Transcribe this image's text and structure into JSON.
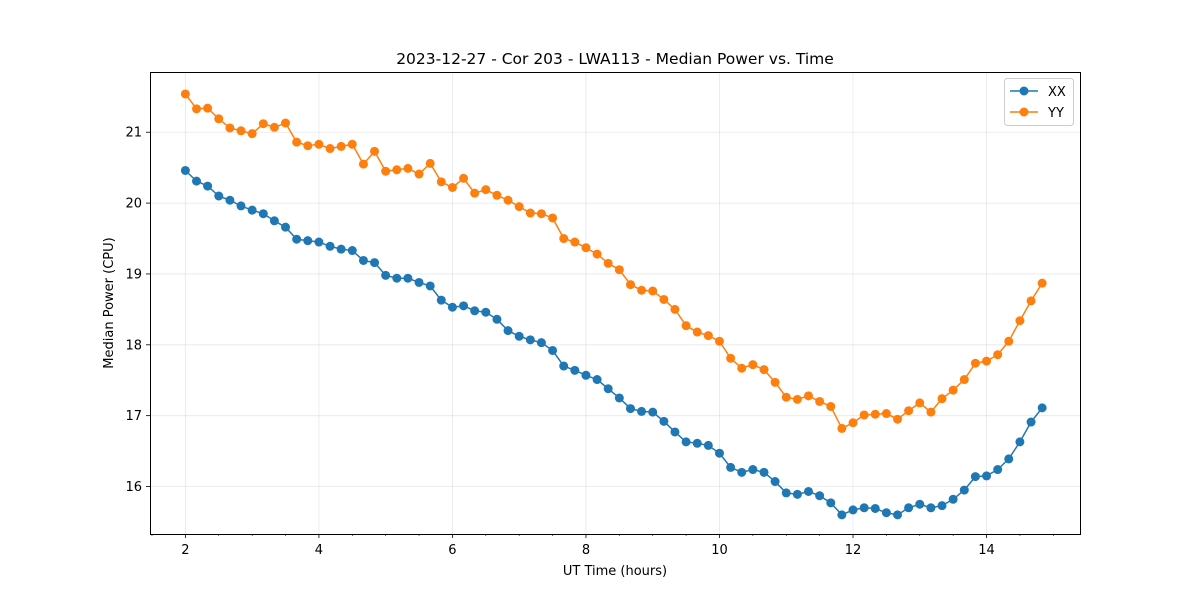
{
  "chart_data": {
    "type": "line",
    "title": "2023-12-27 - Cor 203 - LWA113 - Median Power vs. Time",
    "xlabel": "UT Time (hours)",
    "ylabel": "Median Power (CPU)",
    "xlim": [
      1.47,
      15.4
    ],
    "ylim": [
      15.33,
      21.85
    ],
    "xticks": [
      "2",
      "4",
      "6",
      "8",
      "10",
      "12",
      "14"
    ],
    "yticks": [
      "16",
      "17",
      "18",
      "19",
      "20",
      "21"
    ],
    "grid": true,
    "legend_position": "top-right",
    "x": [
      2.0,
      2.167,
      2.333,
      2.5,
      2.667,
      2.833,
      3.0,
      3.167,
      3.333,
      3.5,
      3.667,
      3.833,
      4.0,
      4.167,
      4.333,
      4.5,
      4.667,
      4.833,
      5.0,
      5.167,
      5.333,
      5.5,
      5.667,
      5.833,
      6.0,
      6.167,
      6.333,
      6.5,
      6.667,
      6.833,
      7.0,
      7.167,
      7.333,
      7.5,
      7.667,
      7.833,
      8.0,
      8.167,
      8.333,
      8.5,
      8.667,
      8.833,
      9.0,
      9.167,
      9.333,
      9.5,
      9.667,
      9.833,
      10.0,
      10.167,
      10.333,
      10.5,
      10.667,
      10.833,
      11.0,
      11.167,
      11.333,
      11.5,
      11.667,
      11.833,
      12.0,
      12.167,
      12.333,
      12.5,
      12.667,
      12.833,
      13.0,
      13.167,
      13.333,
      13.5,
      13.667,
      13.833,
      14.0,
      14.167,
      14.333,
      14.5,
      14.667,
      14.833
    ],
    "series": [
      {
        "name": "XX",
        "color": "#1f77b4",
        "values": [
          20.46,
          20.31,
          20.24,
          20.1,
          20.04,
          19.96,
          19.9,
          19.85,
          19.75,
          19.66,
          19.49,
          19.47,
          19.45,
          19.39,
          19.35,
          19.33,
          19.19,
          19.16,
          18.98,
          18.94,
          18.94,
          18.88,
          18.83,
          18.63,
          18.53,
          18.55,
          18.48,
          18.46,
          18.36,
          18.2,
          18.12,
          18.07,
          18.03,
          17.92,
          17.7,
          17.64,
          17.57,
          17.51,
          17.38,
          17.25,
          17.1,
          17.06,
          17.05,
          16.92,
          16.77,
          16.63,
          16.61,
          16.58,
          16.47,
          16.27,
          16.2,
          16.24,
          16.2,
          16.07,
          15.91,
          15.89,
          15.93,
          15.87,
          15.77,
          15.6,
          15.67,
          15.7,
          15.69,
          15.63,
          15.6,
          15.7,
          15.75,
          15.7,
          15.73,
          15.82,
          15.95,
          16.14,
          16.15,
          16.24,
          16.39,
          16.63,
          16.91,
          17.11
        ]
      },
      {
        "name": "YY",
        "color": "#ff7f0e",
        "values": [
          21.54,
          21.33,
          21.34,
          21.19,
          21.06,
          21.02,
          20.98,
          21.12,
          21.07,
          21.13,
          20.86,
          20.81,
          20.83,
          20.77,
          20.8,
          20.83,
          20.55,
          20.73,
          20.45,
          20.47,
          20.49,
          20.41,
          20.56,
          20.3,
          20.22,
          20.35,
          20.14,
          20.19,
          20.11,
          20.04,
          19.95,
          19.86,
          19.85,
          19.79,
          19.5,
          19.45,
          19.37,
          19.28,
          19.15,
          19.06,
          18.85,
          18.77,
          18.76,
          18.64,
          18.5,
          18.27,
          18.18,
          18.13,
          18.05,
          17.81,
          17.67,
          17.72,
          17.65,
          17.47,
          17.26,
          17.23,
          17.28,
          17.2,
          17.13,
          16.82,
          16.9,
          17.01,
          17.02,
          17.03,
          16.95,
          17.07,
          17.18,
          17.05,
          17.24,
          17.36,
          17.51,
          17.74,
          17.77,
          17.86,
          18.05,
          18.34,
          18.62,
          18.87
        ]
      }
    ]
  }
}
